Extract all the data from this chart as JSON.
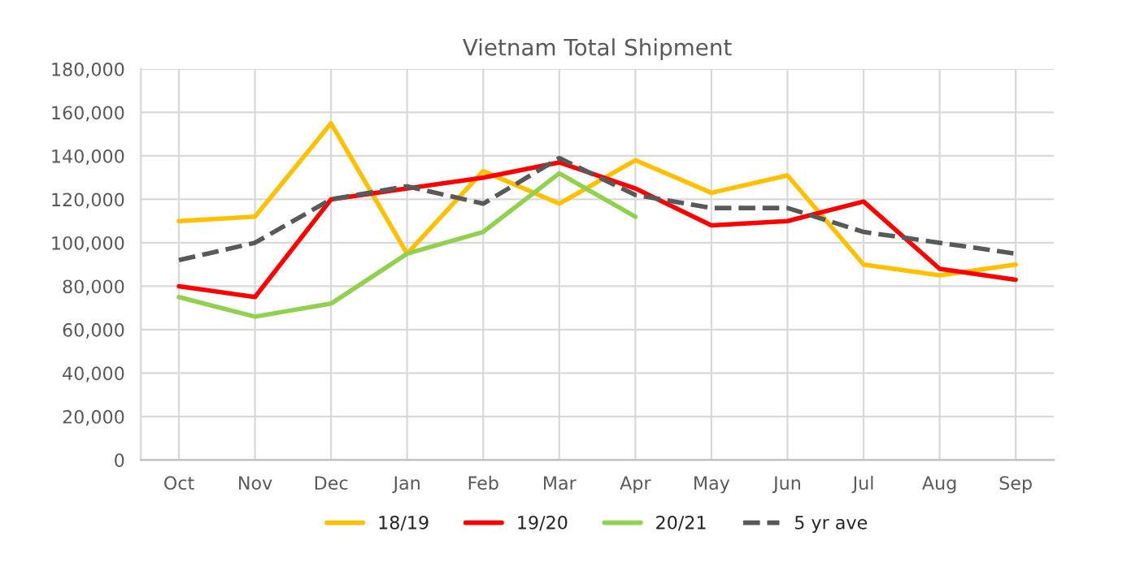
{
  "chart_data": {
    "type": "line",
    "title": "Vietnam Total Shipment",
    "categories": [
      "Oct",
      "Nov",
      "Dec",
      "Jan",
      "Feb",
      "Mar",
      "Apr",
      "May",
      "Jun",
      "Jul",
      "Aug",
      "Sep"
    ],
    "series": [
      {
        "name": "18/19",
        "color": "#ffc000",
        "values": [
          110000,
          112000,
          155000,
          95000,
          133000,
          118000,
          138000,
          123000,
          131000,
          90000,
          85000,
          90000
        ]
      },
      {
        "name": "19/20",
        "color": "#ff0000",
        "values": [
          80000,
          75000,
          120000,
          125000,
          130000,
          137000,
          125000,
          108000,
          110000,
          119000,
          88000,
          83000
        ]
      },
      {
        "name": "20/21",
        "color": "#92d050",
        "values": [
          75000,
          66000,
          72000,
          95000,
          105000,
          132000,
          112000,
          null,
          null,
          null,
          null,
          null
        ]
      },
      {
        "name": "5 yr ave",
        "color": "#595959",
        "line_style": "dashed",
        "values": [
          92000,
          100000,
          120000,
          126000,
          118000,
          139000,
          122000,
          116000,
          116000,
          105000,
          100000,
          95000
        ]
      }
    ],
    "ylim": [
      0,
      180000
    ],
    "yticks": [
      {
        "value": 0,
        "label": "0"
      },
      {
        "value": 20000,
        "label": "20,000"
      },
      {
        "value": 40000,
        "label": "40,000"
      },
      {
        "value": 60000,
        "label": "60,000"
      },
      {
        "value": 80000,
        "label": "80,000"
      },
      {
        "value": 100000,
        "label": "100,000"
      },
      {
        "value": 120000,
        "label": "120,000"
      },
      {
        "value": 140000,
        "label": "140,000"
      },
      {
        "value": 160000,
        "label": "160,000"
      },
      {
        "value": 180000,
        "label": "180,000"
      }
    ],
    "grid": true,
    "legend": "bottom",
    "marker": "none"
  }
}
